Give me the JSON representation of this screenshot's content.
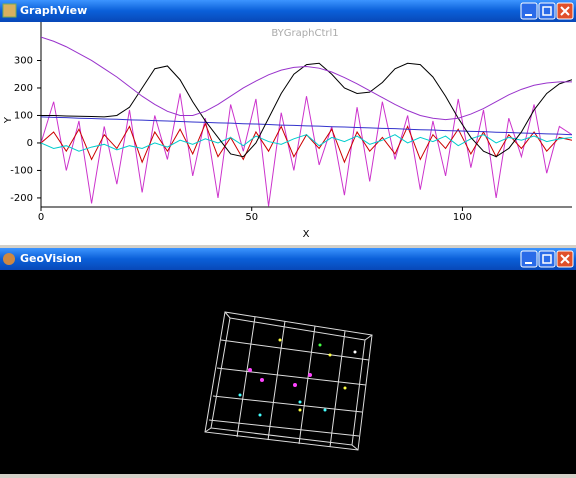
{
  "windows": [
    {
      "title": "GraphView"
    },
    {
      "title": "GeoVision"
    }
  ],
  "chart_data": {
    "type": "line",
    "title": "BYGraphCtrl1",
    "x_label": "X",
    "y_label": "Y",
    "x": [
      0,
      3,
      6,
      9,
      12,
      15,
      18,
      21,
      24,
      27,
      30,
      33,
      36,
      39,
      42,
      45,
      48,
      51,
      54,
      57,
      60,
      63,
      66,
      69,
      72,
      75,
      78,
      81,
      84,
      87,
      90,
      93,
      96,
      99,
      102,
      105,
      108,
      111,
      114,
      117,
      120,
      123,
      126
    ],
    "xlim": [
      0,
      126
    ],
    "ylim": [
      -233,
      440
    ],
    "xticks": [
      0,
      50,
      100
    ],
    "yticks": [
      -200,
      -100,
      0,
      100,
      200,
      300
    ],
    "series": [
      {
        "color": "#cc33cc",
        "values": [
          0,
          150,
          -100,
          80,
          -220,
          60,
          -150,
          120,
          -180,
          100,
          -60,
          180,
          -120,
          90,
          -200,
          140,
          -30,
          160,
          -230,
          110,
          -100,
          170,
          -80,
          60,
          -190,
          130,
          -140,
          150,
          -60,
          100,
          -170,
          80,
          -120,
          160,
          -90,
          120,
          -200,
          90,
          -50,
          140,
          -110,
          60,
          30
        ]
      },
      {
        "color": "#cc0000",
        "values": [
          0,
          40,
          -30,
          50,
          -60,
          30,
          -20,
          60,
          -70,
          40,
          -30,
          50,
          -40,
          70,
          -50,
          20,
          -60,
          40,
          -30,
          60,
          -50,
          30,
          -20,
          50,
          -70,
          40,
          -30,
          20,
          -40,
          60,
          -60,
          30,
          -20,
          50,
          -40,
          40,
          -50,
          30,
          -20,
          40,
          -30,
          20,
          10
        ]
      },
      {
        "color": "#00cccc",
        "values": [
          0,
          -20,
          -10,
          -30,
          -15,
          -5,
          -25,
          -10,
          -20,
          0,
          -15,
          10,
          -5,
          15,
          0,
          20,
          -10,
          25,
          5,
          -5,
          15,
          30,
          -10,
          20,
          5,
          25,
          -5,
          10,
          30,
          0,
          20,
          5,
          25,
          -10,
          15,
          30,
          0,
          20,
          10,
          25,
          5,
          15,
          20
        ]
      },
      {
        "color": "#3333cc",
        "values": [
          95,
          93,
          92,
          90,
          89,
          87,
          86,
          84,
          83,
          81,
          80,
          78,
          76,
          75,
          73,
          72,
          70,
          69,
          67,
          65,
          64,
          62,
          61,
          59,
          58,
          56,
          55,
          53,
          52,
          50,
          48,
          47,
          45,
          44,
          42,
          41,
          39,
          38,
          36,
          35,
          33,
          32,
          30
        ]
      },
      {
        "color": "#000000",
        "values": [
          100,
          100,
          98,
          97,
          96,
          95,
          100,
          130,
          200,
          270,
          280,
          230,
          150,
          80,
          20,
          -40,
          -50,
          0,
          90,
          180,
          250,
          285,
          290,
          250,
          200,
          180,
          185,
          220,
          270,
          290,
          285,
          240,
          170,
          90,
          20,
          -30,
          -50,
          -20,
          40,
          120,
          180,
          215,
          230
        ]
      },
      {
        "color": "#9933cc",
        "values": [
          385,
          370,
          350,
          325,
          300,
          270,
          240,
          205,
          170,
          140,
          115,
          100,
          100,
          115,
          140,
          170,
          200,
          225,
          248,
          265,
          275,
          278,
          272,
          258,
          238,
          215,
          190,
          165,
          140,
          118,
          100,
          90,
          85,
          90,
          105,
          125,
          150,
          175,
          195,
          210,
          218,
          222,
          222
        ]
      }
    ]
  }
}
